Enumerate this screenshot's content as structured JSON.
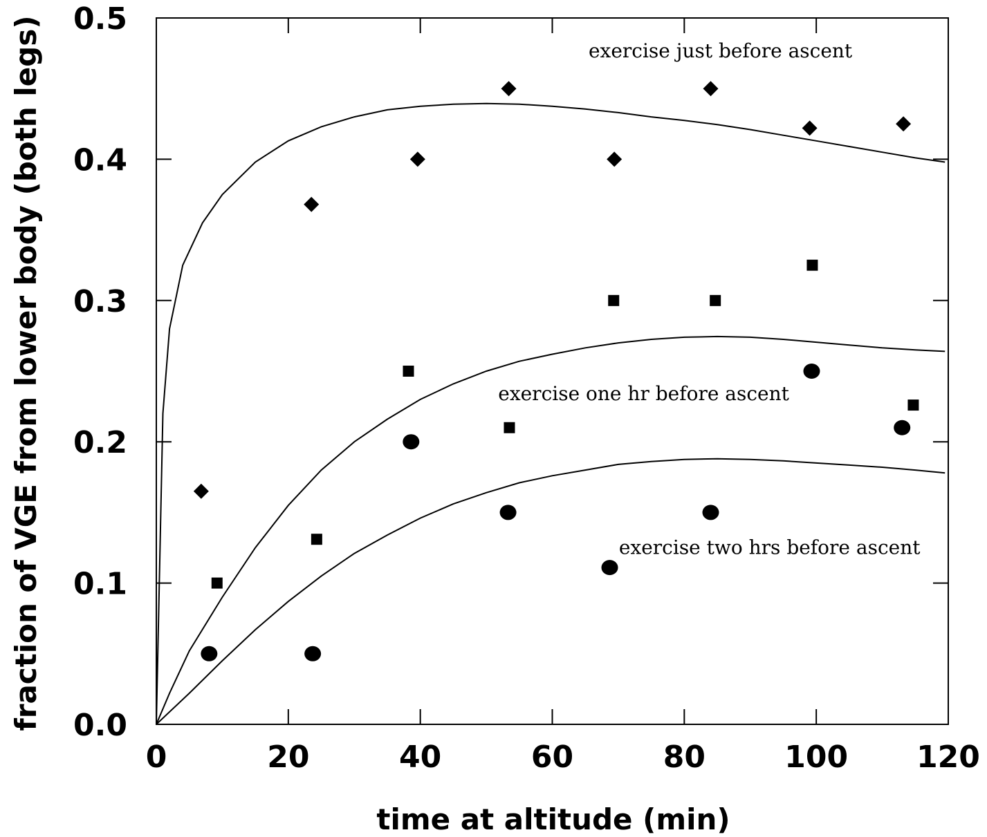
{
  "chart_data": {
    "type": "scatter",
    "xlabel": "time at altitude (min)",
    "ylabel": "fraction of VGE from lower body (both legs)",
    "xlim": [
      0,
      120
    ],
    "ylim": [
      0,
      0.5
    ],
    "x_ticks": [
      0,
      20,
      40,
      60,
      80,
      100,
      120
    ],
    "x_tick_labels": [
      "0",
      "20",
      "40",
      "60",
      "80",
      "100",
      "120"
    ],
    "y_ticks": [
      0,
      0.1,
      0.2,
      0.3,
      0.4,
      0.5
    ],
    "y_tick_labels": [
      "0.0",
      "0.1",
      "0.2",
      "0.3",
      "0.4",
      "0.5"
    ],
    "grid": false,
    "series": [
      {
        "marker": "diamond",
        "points": [
          [
            6.8,
            0.165
          ],
          [
            23.5,
            0.368
          ],
          [
            39.6,
            0.4
          ],
          [
            53.4,
            0.45
          ],
          [
            69.4,
            0.4
          ],
          [
            84.0,
            0.45
          ],
          [
            99.0,
            0.422
          ],
          [
            113.2,
            0.425
          ]
        ],
        "curve": [
          [
            0,
            0
          ],
          [
            1,
            0.22
          ],
          [
            2,
            0.28
          ],
          [
            4,
            0.325
          ],
          [
            7,
            0.355
          ],
          [
            10,
            0.375
          ],
          [
            15,
            0.398
          ],
          [
            20,
            0.413
          ],
          [
            25,
            0.423
          ],
          [
            30,
            0.43
          ],
          [
            35,
            0.435
          ],
          [
            40,
            0.4375
          ],
          [
            45,
            0.439
          ],
          [
            50,
            0.4395
          ],
          [
            55,
            0.439
          ],
          [
            60,
            0.4375
          ],
          [
            65,
            0.4355
          ],
          [
            70,
            0.433
          ],
          [
            75,
            0.43
          ],
          [
            80,
            0.4275
          ],
          [
            85,
            0.4245
          ],
          [
            90,
            0.421
          ],
          [
            95,
            0.417
          ],
          [
            100,
            0.413
          ],
          [
            105,
            0.409
          ],
          [
            110,
            0.405
          ],
          [
            115,
            0.401
          ],
          [
            119.5,
            0.398
          ]
        ]
      },
      {
        "marker": "square",
        "points": [
          [
            9.2,
            0.1
          ],
          [
            24.3,
            0.131
          ],
          [
            38.2,
            0.25
          ],
          [
            53.5,
            0.21
          ],
          [
            69.3,
            0.3
          ],
          [
            84.7,
            0.3
          ],
          [
            99.4,
            0.325
          ],
          [
            114.7,
            0.226
          ]
        ],
        "curve": [
          [
            0,
            0
          ],
          [
            2,
            0.022
          ],
          [
            5,
            0.052
          ],
          [
            10,
            0.09
          ],
          [
            15,
            0.125
          ],
          [
            20,
            0.155
          ],
          [
            25,
            0.18
          ],
          [
            30,
            0.2
          ],
          [
            35,
            0.216
          ],
          [
            40,
            0.23
          ],
          [
            45,
            0.241
          ],
          [
            50,
            0.25
          ],
          [
            55,
            0.257
          ],
          [
            60,
            0.262
          ],
          [
            65,
            0.2665
          ],
          [
            70,
            0.27
          ],
          [
            75,
            0.2725
          ],
          [
            80,
            0.274
          ],
          [
            85,
            0.2745
          ],
          [
            90,
            0.274
          ],
          [
            95,
            0.2725
          ],
          [
            100,
            0.2705
          ],
          [
            105,
            0.2685
          ],
          [
            110,
            0.2665
          ],
          [
            115,
            0.265
          ],
          [
            119.5,
            0.264
          ]
        ]
      },
      {
        "marker": "circle",
        "points": [
          [
            8.0,
            0.05
          ],
          [
            23.7,
            0.05
          ],
          [
            38.6,
            0.2
          ],
          [
            53.3,
            0.15
          ],
          [
            68.7,
            0.111
          ],
          [
            84.0,
            0.15
          ],
          [
            99.3,
            0.25
          ],
          [
            113.0,
            0.21
          ]
        ],
        "curve": [
          [
            0,
            0
          ],
          [
            5,
            0.022
          ],
          [
            10,
            0.045
          ],
          [
            15,
            0.067
          ],
          [
            20,
            0.087
          ],
          [
            25,
            0.105
          ],
          [
            30,
            0.121
          ],
          [
            35,
            0.134
          ],
          [
            40,
            0.146
          ],
          [
            45,
            0.156
          ],
          [
            50,
            0.164
          ],
          [
            55,
            0.171
          ],
          [
            60,
            0.176
          ],
          [
            65,
            0.18
          ],
          [
            70,
            0.184
          ],
          [
            75,
            0.186
          ],
          [
            80,
            0.1875
          ],
          [
            85,
            0.188
          ],
          [
            90,
            0.1875
          ],
          [
            95,
            0.1865
          ],
          [
            100,
            0.185
          ],
          [
            105,
            0.1835
          ],
          [
            110,
            0.182
          ],
          [
            115,
            0.18
          ],
          [
            119.5,
            0.178
          ]
        ]
      }
    ],
    "annotations": [
      {
        "text": "exercise just before ascent",
        "x": 65.5,
        "y": 0.472
      },
      {
        "text": "exercise one hr before ascent",
        "x": 51.8,
        "y": 0.2295
      },
      {
        "text": "exercise two hrs before ascent",
        "x": 70.1,
        "y": 0.1205
      }
    ]
  }
}
